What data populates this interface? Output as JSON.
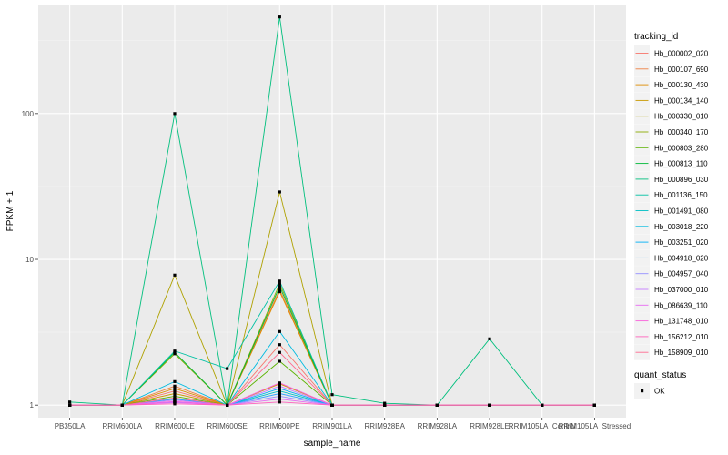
{
  "chart_data": {
    "type": "line",
    "xlabel": "sample_name",
    "ylabel": "FPKM + 1",
    "y_scale": "log10",
    "ylim": [
      0.82,
      560
    ],
    "y_ticks": [
      1,
      10,
      100
    ],
    "y_tick_labels": [
      "1",
      "10",
      "100"
    ],
    "grid": true,
    "legend_position": "right",
    "categories": [
      "PB350LA",
      "RRIM600LA",
      "RRIM600LE",
      "RRIM600SE",
      "RRIM600PE",
      "RRIM901LA",
      "RRIM928BA",
      "RRIM928LA",
      "RRIM928LE",
      "RRIM105LA_Control",
      "RRIM105LA_Stressed"
    ],
    "legend": {
      "title": "tracking_id",
      "entries": [
        "Hb_000002_020",
        "Hb_000107_690",
        "Hb_000130_430",
        "Hb_000134_140",
        "Hb_000330_010",
        "Hb_000340_170",
        "Hb_000803_280",
        "Hb_000813_110",
        "Hb_000896_030",
        "Hb_001136_150",
        "Hb_001491_080",
        "Hb_003018_220",
        "Hb_003251_020",
        "Hb_004918_020",
        "Hb_004957_040",
        "Hb_037000_010",
        "Hb_086639_110",
        "Hb_131748_010",
        "Hb_156212_010",
        "Hb_158909_010"
      ]
    },
    "status_legend": {
      "title": "quant_status",
      "entries": [
        "OK"
      ]
    },
    "series": [
      {
        "color": "#F8766D",
        "values": [
          1.0,
          1.0,
          1.25,
          1.0,
          2.6,
          1.0,
          1.0,
          1.0,
          1.0,
          1.0,
          1.0
        ]
      },
      {
        "color": "#EE8043",
        "values": [
          1.0,
          1.0,
          1.35,
          1.0,
          6.2,
          1.0,
          1.0,
          1.0,
          1.0,
          1.0,
          1.0
        ]
      },
      {
        "color": "#DE8C00",
        "values": [
          1.0,
          1.0,
          1.3,
          1.0,
          6.0,
          1.0,
          1.0,
          1.0,
          1.0,
          1.0,
          1.0
        ]
      },
      {
        "color": "#C99800",
        "values": [
          1.0,
          1.0,
          1.2,
          1.0,
          1.4,
          1.0,
          1.0,
          1.0,
          1.0,
          1.0,
          1.0
        ]
      },
      {
        "color": "#AFA100",
        "values": [
          1.0,
          1.0,
          7.8,
          1.0,
          29.0,
          1.0,
          1.0,
          1.0,
          1.0,
          1.0,
          1.0
        ]
      },
      {
        "color": "#8DAA00",
        "values": [
          1.0,
          1.0,
          2.25,
          1.0,
          6.8,
          1.0,
          1.0,
          1.0,
          1.0,
          1.0,
          1.0
        ]
      },
      {
        "color": "#5BB300",
        "values": [
          1.0,
          1.0,
          1.15,
          1.0,
          2.0,
          1.0,
          1.0,
          1.0,
          1.0,
          1.0,
          1.0
        ]
      },
      {
        "color": "#00BA38",
        "values": [
          1.0,
          1.0,
          2.3,
          1.0,
          6.5,
          1.0,
          1.0,
          1.0,
          1.0,
          1.0,
          1.0
        ]
      },
      {
        "color": "#00BF7D",
        "values": [
          1.05,
          1.0,
          100,
          1.0,
          460,
          1.18,
          1.03,
          1.0,
          2.85,
          1.0,
          1.0
        ]
      },
      {
        "color": "#00C1A3",
        "values": [
          1.0,
          1.0,
          2.35,
          1.78,
          7.1,
          1.0,
          1.0,
          1.0,
          1.0,
          1.0,
          1.0
        ]
      },
      {
        "color": "#00BFC4",
        "values": [
          1.0,
          1.0,
          1.1,
          1.0,
          1.25,
          1.0,
          1.0,
          1.0,
          1.0,
          1.0,
          1.0
        ]
      },
      {
        "color": "#00BAE0",
        "values": [
          1.0,
          1.0,
          1.45,
          1.0,
          3.2,
          1.0,
          1.0,
          1.0,
          1.0,
          1.0,
          1.0
        ]
      },
      {
        "color": "#00B0F6",
        "values": [
          1.0,
          1.0,
          1.05,
          1.0,
          1.3,
          1.0,
          1.0,
          1.0,
          1.0,
          1.0,
          1.0
        ]
      },
      {
        "color": "#35A2FF",
        "values": [
          1.0,
          1.0,
          1.1,
          1.0,
          1.2,
          1.0,
          1.0,
          1.0,
          1.0,
          1.0,
          1.0
        ]
      },
      {
        "color": "#9590FF",
        "values": [
          1.0,
          1.0,
          1.05,
          1.0,
          1.15,
          1.0,
          1.0,
          1.0,
          1.0,
          1.0,
          1.0
        ]
      },
      {
        "color": "#C77CFF",
        "values": [
          1.0,
          1.0,
          1.08,
          1.0,
          1.35,
          1.0,
          1.0,
          1.0,
          1.0,
          1.0,
          1.0
        ]
      },
      {
        "color": "#E76BF3",
        "values": [
          1.0,
          1.0,
          1.04,
          1.0,
          1.1,
          1.0,
          1.0,
          1.0,
          1.0,
          1.0,
          1.0
        ]
      },
      {
        "color": "#FA62DB",
        "values": [
          1.0,
          1.0,
          1.06,
          1.0,
          1.42,
          1.0,
          1.0,
          1.0,
          1.0,
          1.0,
          1.0
        ]
      },
      {
        "color": "#FF62BC",
        "values": [
          1.0,
          1.0,
          1.02,
          1.0,
          1.05,
          1.0,
          1.0,
          1.0,
          1.0,
          1.0,
          1.0
        ]
      },
      {
        "color": "#FF6C91",
        "values": [
          1.0,
          1.0,
          1.12,
          1.0,
          2.3,
          1.0,
          1.0,
          1.0,
          1.0,
          1.0,
          1.0
        ]
      }
    ]
  }
}
